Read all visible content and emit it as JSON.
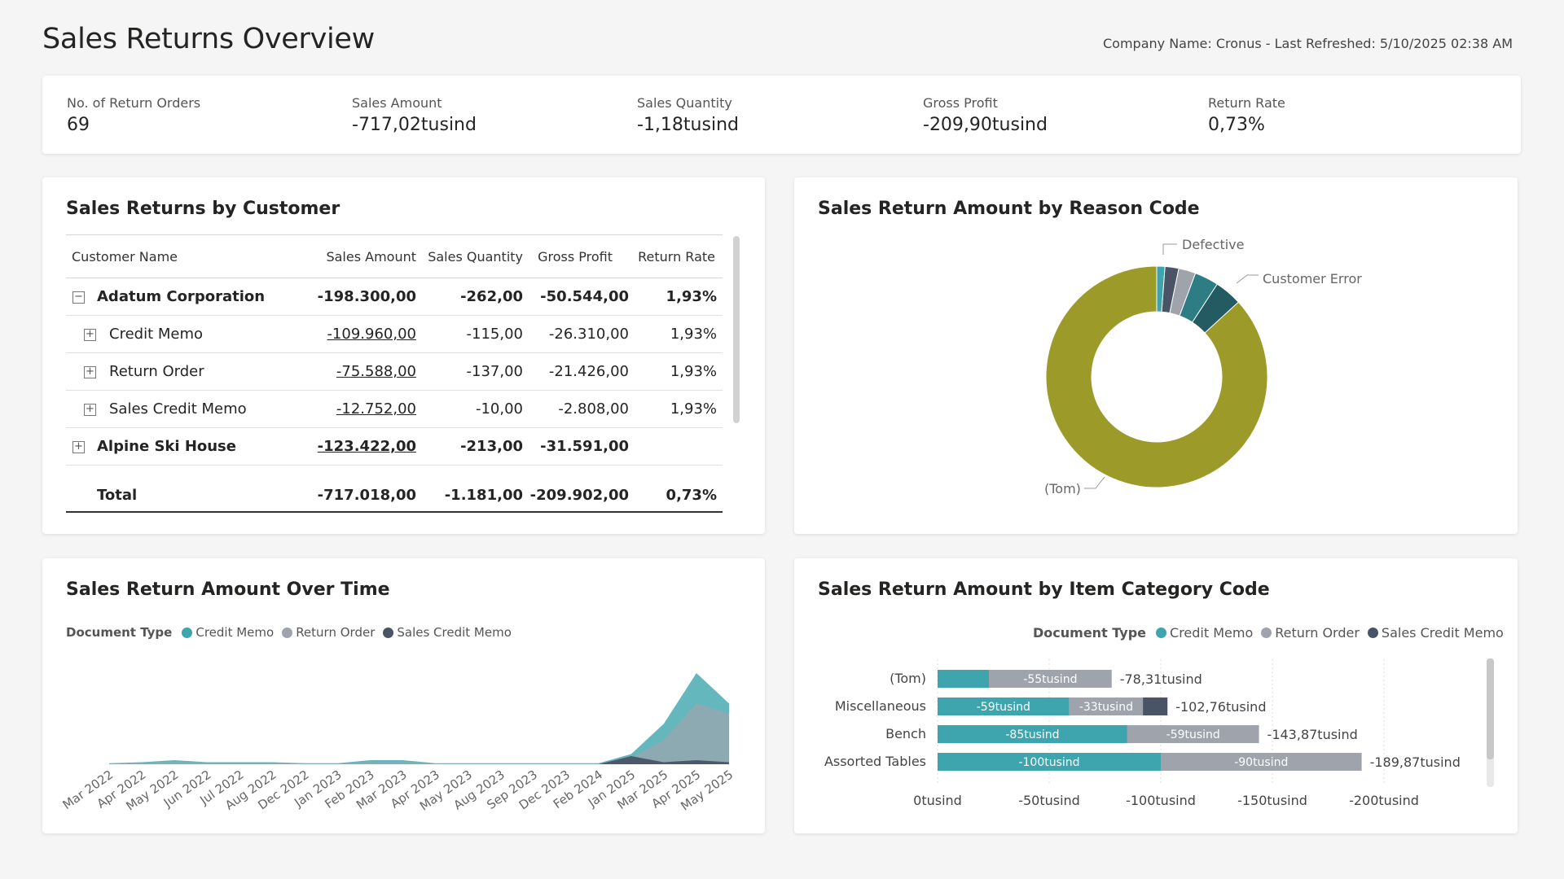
{
  "header": {
    "title": "Sales Returns Overview",
    "refresh": "Company Name: Cronus - Last Refreshed: 5/10/2025 02:38 AM"
  },
  "kpis": [
    {
      "label": "No. of Return Orders",
      "value": "69"
    },
    {
      "label": "Sales Amount",
      "value": "-717,02tusind"
    },
    {
      "label": "Sales Quantity",
      "value": "-1,18tusind"
    },
    {
      "label": "Gross Profit",
      "value": "-209,90tusind"
    },
    {
      "label": "Return Rate",
      "value": "0,73%"
    }
  ],
  "customer_table": {
    "title": "Sales Returns by Customer",
    "columns": [
      "Customer Name",
      "Sales Amount",
      "Sales Quantity",
      "Gross Profit",
      "Return Rate"
    ],
    "rows": [
      {
        "name": "Adatum Corporation",
        "amount": "-198.300,00",
        "qty": "-262,00",
        "profit": "-50.544,00",
        "rate": "1,93%",
        "level": 0,
        "toggle": "−"
      },
      {
        "name": "Credit Memo",
        "amount": "-109.960,00",
        "qty": "-115,00",
        "profit": "-26.310,00",
        "rate": "1,93%",
        "level": 1,
        "toggle": "+"
      },
      {
        "name": "Return Order",
        "amount": "-75.588,00",
        "qty": "-137,00",
        "profit": "-21.426,00",
        "rate": "1,93%",
        "level": 1,
        "toggle": "+"
      },
      {
        "name": "Sales Credit Memo",
        "amount": "-12.752,00",
        "qty": "-10,00",
        "profit": "-2.808,00",
        "rate": "1,93%",
        "level": 1,
        "toggle": "+"
      },
      {
        "name": "Alpine Ski House",
        "amount": "-123.422,00",
        "qty": "-213,00",
        "profit": "-31.591,00",
        "rate": "",
        "level": 0,
        "toggle": "+"
      }
    ],
    "total": {
      "name": "Total",
      "amount": "-717.018,00",
      "qty": "-1.181,00",
      "profit": "-209.902,00",
      "rate": "0,73%"
    }
  },
  "reason_chart": {
    "title": "Sales Return Amount by Reason Code",
    "labels": {
      "defective": "Defective",
      "customer_error": "Customer Error",
      "tom": "(Tom)"
    }
  },
  "time_chart": {
    "title": "Sales Return Amount Over Time",
    "legend_title": "Document Type",
    "legend": [
      {
        "label": "Credit Memo",
        "color": "#3ea5ae"
      },
      {
        "label": "Return Order",
        "color": "#9ea3ac"
      },
      {
        "label": "Sales Credit Memo",
        "color": "#4a5467"
      }
    ]
  },
  "category_chart": {
    "title": "Sales Return Amount by Item Category Code",
    "legend_title": "Document Type",
    "legend": [
      {
        "label": "Credit Memo",
        "color": "#3ea5ae"
      },
      {
        "label": "Return Order",
        "color": "#9ea3ac"
      },
      {
        "label": "Sales Credit Memo",
        "color": "#4a5467"
      }
    ]
  },
  "chart_data": [
    {
      "type": "pie",
      "title": "Sales Return Amount by Reason Code",
      "donut": true,
      "labels": [
        "(Tom)",
        "Defective",
        "Customer Error"
      ],
      "slices": [
        {
          "label": "(Tom)",
          "value": 0.868,
          "color": "#9c9a28"
        },
        {
          "label": "",
          "value": 0.012,
          "color": "#3ea5ae"
        },
        {
          "label": "",
          "value": 0.02,
          "color": "#4a5467"
        },
        {
          "label": "Defective",
          "value": 0.025,
          "color": "#9ea3ac"
        },
        {
          "label": "",
          "value": 0.035,
          "color": "#2e7d85"
        },
        {
          "label": "Customer Error",
          "value": 0.04,
          "color": "#245b63"
        }
      ]
    },
    {
      "type": "area",
      "title": "Sales Return Amount Over Time",
      "categories": [
        "Mar 2022",
        "Apr 2022",
        "May 2022",
        "Jun 2022",
        "Jul 2022",
        "Aug 2022",
        "Dec 2022",
        "Jan 2023",
        "Feb 2023",
        "Mar 2023",
        "Apr 2023",
        "May 2023",
        "Aug 2023",
        "Sep 2023",
        "Dec 2023",
        "Feb 2024",
        "Jan 2025",
        "Mar 2025",
        "Apr 2025",
        "May 2025"
      ],
      "series": [
        {
          "name": "Credit Memo",
          "values": [
            0.5,
            1,
            2,
            1,
            1,
            1,
            0.5,
            0.5,
            2,
            2,
            0.5,
            0.5,
            0.5,
            0.5,
            0.5,
            0.5,
            5,
            20,
            45,
            30
          ]
        },
        {
          "name": "Return Order",
          "values": [
            0.3,
            0.5,
            1,
            0.5,
            0.5,
            0.5,
            0.3,
            0.3,
            1,
            1,
            0.3,
            0.3,
            0.3,
            0.3,
            0.3,
            0.3,
            3,
            12,
            30,
            25
          ]
        },
        {
          "name": "Sales Credit Memo",
          "values": [
            0,
            0,
            0,
            0,
            0,
            0,
            0,
            0,
            0,
            0,
            0,
            0,
            0,
            0,
            0,
            0,
            4,
            1,
            2,
            1
          ]
        }
      ]
    },
    {
      "type": "bar",
      "title": "Sales Return Amount by Item Category Code",
      "orientation": "horizontal",
      "stacked": true,
      "categories": [
        "(Tom)",
        "Miscellaneous",
        "Bench",
        "Assorted Tables"
      ],
      "series": [
        {
          "name": "Credit Memo",
          "values": [
            -23,
            -59,
            -85,
            -100
          ],
          "labels": [
            "",
            "-59tusind",
            "-85tusind",
            "-100tusind"
          ]
        },
        {
          "name": "Return Order",
          "values": [
            -55,
            -33,
            -59,
            -90
          ],
          "labels": [
            "-55tusind",
            "-33tusind",
            "-59tusind",
            "-90tusind"
          ]
        },
        {
          "name": "Sales Credit Memo",
          "values": [
            0,
            -11,
            0,
            0
          ],
          "labels": [
            "",
            "",
            "",
            ""
          ]
        }
      ],
      "totals": [
        "-78,31tusind",
        "-102,76tusind",
        "-143,87tusind",
        "-189,87tusind"
      ],
      "xticks": [
        "0tusind",
        "-50tusind",
        "-100tusind",
        "-150tusind",
        "-200tusind"
      ],
      "xlim": [
        0,
        -200
      ]
    }
  ]
}
